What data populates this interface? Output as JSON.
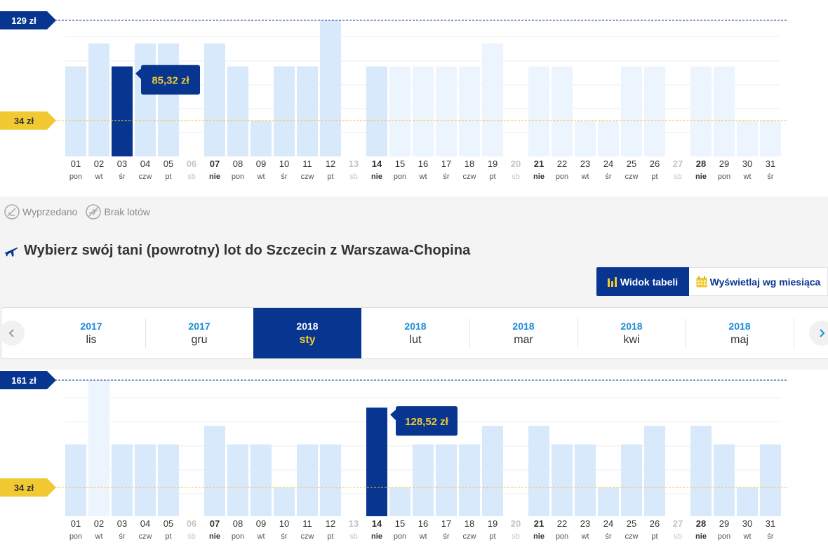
{
  "days": [
    {
      "num": "01",
      "dow": "pon",
      "w": false
    },
    {
      "num": "02",
      "dow": "wt",
      "w": false
    },
    {
      "num": "03",
      "dow": "śr",
      "w": false
    },
    {
      "num": "04",
      "dow": "czw",
      "w": false
    },
    {
      "num": "05",
      "dow": "pt",
      "w": false
    },
    {
      "num": "06",
      "dow": "sb",
      "w": "sat"
    },
    {
      "num": "07",
      "dow": "nie",
      "w": "sun"
    },
    {
      "num": "08",
      "dow": "pon",
      "w": false
    },
    {
      "num": "09",
      "dow": "wt",
      "w": false
    },
    {
      "num": "10",
      "dow": "śr",
      "w": false
    },
    {
      "num": "11",
      "dow": "czw",
      "w": false
    },
    {
      "num": "12",
      "dow": "pt",
      "w": false
    },
    {
      "num": "13",
      "dow": "sb",
      "w": "sat"
    },
    {
      "num": "14",
      "dow": "nie",
      "w": "sun"
    },
    {
      "num": "15",
      "dow": "pon",
      "w": false
    },
    {
      "num": "16",
      "dow": "wt",
      "w": false
    },
    {
      "num": "17",
      "dow": "śr",
      "w": false
    },
    {
      "num": "18",
      "dow": "czw",
      "w": false
    },
    {
      "num": "19",
      "dow": "pt",
      "w": false
    },
    {
      "num": "20",
      "dow": "sb",
      "w": "sat"
    },
    {
      "num": "21",
      "dow": "nie",
      "w": "sun"
    },
    {
      "num": "22",
      "dow": "pon",
      "w": false
    },
    {
      "num": "23",
      "dow": "wt",
      "w": false
    },
    {
      "num": "24",
      "dow": "śr",
      "w": false
    },
    {
      "num": "25",
      "dow": "czw",
      "w": false
    },
    {
      "num": "26",
      "dow": "pt",
      "w": false
    },
    {
      "num": "27",
      "dow": "sb",
      "w": "sat"
    },
    {
      "num": "28",
      "dow": "nie",
      "w": "sun"
    },
    {
      "num": "29",
      "dow": "pon",
      "w": false
    },
    {
      "num": "30",
      "dow": "wt",
      "w": false
    },
    {
      "num": "31",
      "dow": "śr",
      "w": false
    }
  ],
  "colors": {
    "selected": "#073590",
    "available": "#d7e9fa",
    "faded": "#ecf4fd",
    "max_line": "#073590",
    "min_line": "#f1c932"
  },
  "legend": {
    "sold_out": "Wyprzedano",
    "no_flights": "Brak lotów"
  },
  "section": {
    "title": "Wybierz swój tani (powrotny) lot do Szczecin z Warszawa-Chopina"
  },
  "view": {
    "table_label": "Widok tabeli",
    "month_label": "Wyświetlaj wg miesiąca"
  },
  "months": [
    {
      "year": "2017",
      "month": "lis",
      "selected": false
    },
    {
      "year": "2017",
      "month": "gru",
      "selected": false
    },
    {
      "year": "2018",
      "month": "sty",
      "selected": true
    },
    {
      "year": "2018",
      "month": "lut",
      "selected": false
    },
    {
      "year": "2018",
      "month": "mar",
      "selected": false
    },
    {
      "year": "2018",
      "month": "kwi",
      "selected": false
    },
    {
      "year": "2018",
      "month": "maj",
      "selected": false
    }
  ],
  "chart_data": [
    {
      "type": "bar",
      "ylim": [
        0,
        129
      ],
      "max_label": "129 zł",
      "min_label": "34 zł",
      "min_value": 34,
      "selected_index": 2,
      "selected_label": "85,32 zł",
      "values": [
        85.32,
        107,
        85.32,
        107,
        107,
        null,
        107,
        85.32,
        34,
        85.32,
        85.32,
        129,
        null,
        85.32,
        85.32,
        85.32,
        85.32,
        85.32,
        107,
        null,
        85.32,
        85.32,
        34,
        34,
        85.32,
        85.32,
        null,
        85.32,
        85.32,
        34,
        34
      ],
      "faded": [
        false,
        false,
        false,
        false,
        false,
        false,
        false,
        false,
        false,
        false,
        false,
        false,
        false,
        false,
        true,
        true,
        true,
        true,
        true,
        false,
        true,
        true,
        true,
        true,
        true,
        true,
        false,
        true,
        true,
        true,
        true
      ]
    },
    {
      "type": "bar",
      "ylim": [
        0,
        161
      ],
      "max_label": "161 zł",
      "min_label": "34 zł",
      "min_value": 34,
      "selected_index": 13,
      "selected_label": "128,52 zł",
      "values": [
        85,
        161,
        85,
        85,
        85,
        null,
        107,
        85,
        85,
        34,
        85,
        85,
        null,
        128.52,
        34,
        85,
        85,
        85,
        107,
        null,
        107,
        85,
        85,
        34,
        85,
        107,
        null,
        107,
        85,
        34,
        85
      ],
      "faded": [
        false,
        true,
        false,
        false,
        false,
        false,
        false,
        false,
        false,
        false,
        false,
        false,
        false,
        false,
        false,
        false,
        false,
        false,
        false,
        false,
        false,
        false,
        false,
        false,
        false,
        false,
        false,
        false,
        false,
        false,
        false
      ]
    }
  ]
}
